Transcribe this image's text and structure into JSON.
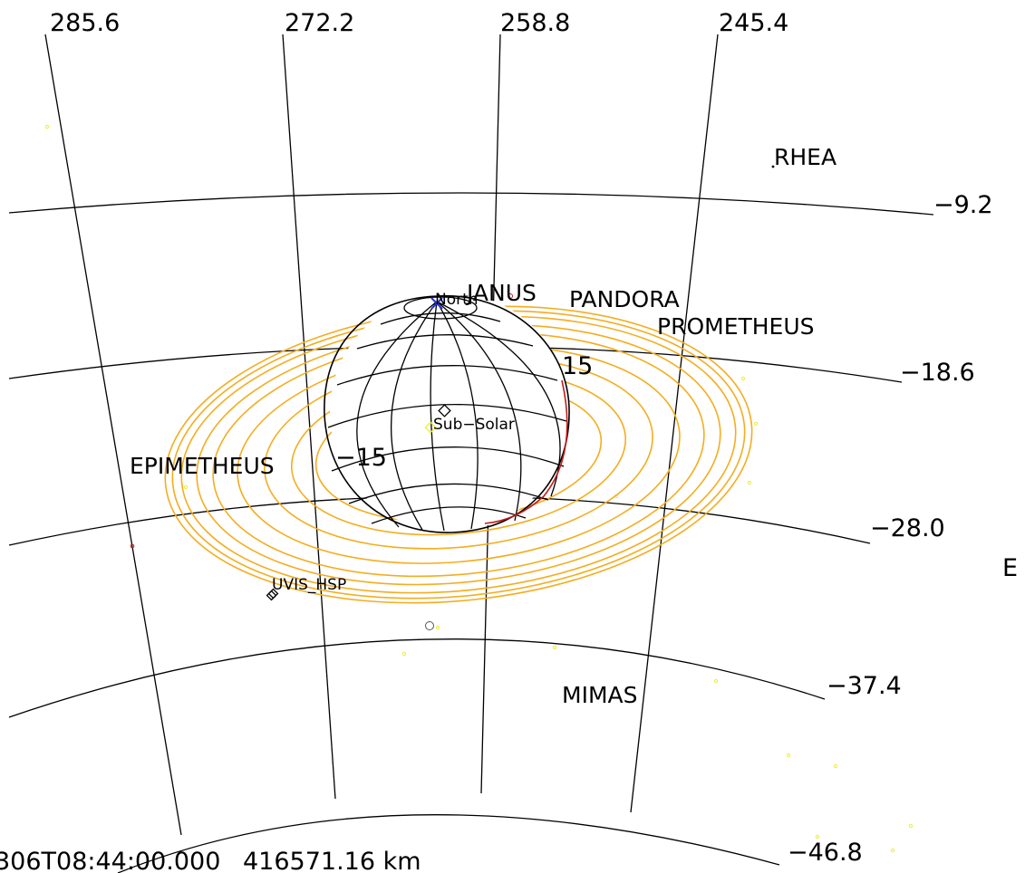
{
  "ra_labels": [
    "285.6",
    "272.2",
    "258.8",
    "245.4"
  ],
  "dec_labels": [
    "−9.2",
    "−18.6",
    "−28.0",
    "−37.4",
    "−46.8"
  ],
  "bodies": [
    {
      "name": "RHEA"
    },
    {
      "name": "JANUS"
    },
    {
      "name": "PANDORA"
    },
    {
      "name": "PROMETHEUS"
    },
    {
      "name": "EPIMETHEUS"
    },
    {
      "name": "MIMAS"
    }
  ],
  "planet_labels": {
    "north": "North",
    "sub_solar": "Sub−Solar",
    "lat_pos": "15",
    "lat_neg": "−15"
  },
  "instrument": {
    "name": "UVIS_HSP"
  },
  "edge_label": "E",
  "footer": {
    "time": "306T08:44:00.000",
    "range": "416571.16 km"
  },
  "colors": {
    "rings": "#f4ad1f",
    "north_marker": "#2a35d8",
    "terminator": "#c41a1a",
    "stars": "#ecec3a"
  }
}
